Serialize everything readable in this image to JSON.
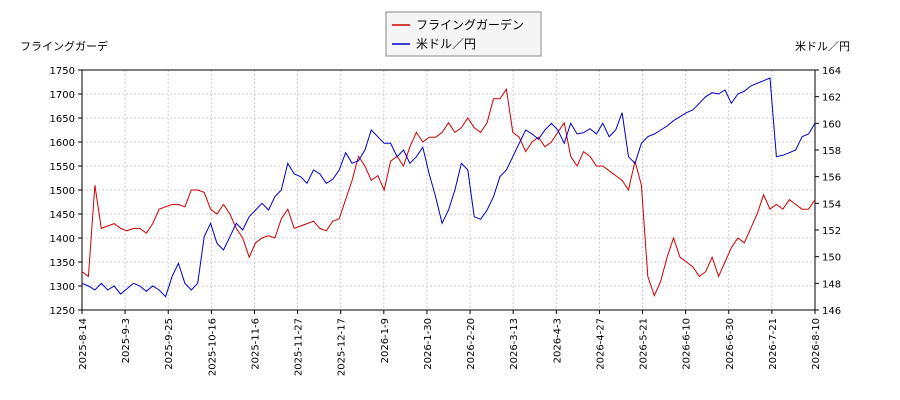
{
  "chart_data": {
    "type": "line",
    "legend": {
      "placement": "top-center"
    },
    "grid": true,
    "left_axis": {
      "title": "フライングガーデ",
      "range": [
        1250,
        1750
      ],
      "ticks": [
        1250,
        1300,
        1350,
        1400,
        1450,
        1500,
        1550,
        1600,
        1650,
        1700,
        1750
      ],
      "color": "#cc0000"
    },
    "right_axis": {
      "title": "米ドル／円",
      "range": [
        146,
        164
      ],
      "ticks": [
        146,
        148,
        150,
        152,
        154,
        156,
        158,
        160,
        162,
        164
      ],
      "color": "#0000cc"
    },
    "x_ticks": [
      "2025-8-14",
      "2025-9-3",
      "2025-9-25",
      "2025-10-16",
      "2025-11-6",
      "2025-11-27",
      "2025-12-17",
      "2026-1-9",
      "2026-1-30",
      "2026-2-20",
      "2026-3-13",
      "2026-4-3",
      "2026-4-27",
      "2026-5-21",
      "2026-6-10",
      "2026-6-30",
      "2026-7-21",
      "2026-8-10"
    ],
    "series": [
      {
        "name": "フライングガーデン",
        "color": "#cc0000",
        "axis": "left",
        "values": [
          1330,
          1320,
          1510,
          1420,
          1425,
          1430,
          1420,
          1415,
          1420,
          1420,
          1410,
          1430,
          1460,
          1465,
          1470,
          1470,
          1465,
          1500,
          1500,
          1495,
          1460,
          1450,
          1470,
          1450,
          1420,
          1400,
          1360,
          1390,
          1400,
          1405,
          1400,
          1440,
          1460,
          1420,
          1425,
          1430,
          1435,
          1420,
          1415,
          1435,
          1440,
          1480,
          1520,
          1570,
          1550,
          1520,
          1530,
          1500,
          1560,
          1570,
          1550,
          1590,
          1620,
          1600,
          1610,
          1610,
          1620,
          1640,
          1620,
          1630,
          1650,
          1630,
          1620,
          1640,
          1690,
          1690,
          1710,
          1620,
          1610,
          1580,
          1600,
          1610,
          1590,
          1600,
          1620,
          1640,
          1570,
          1550,
          1580,
          1570,
          1550,
          1550,
          1540,
          1530,
          1520,
          1500,
          1560,
          1510,
          1320,
          1280,
          1310,
          1360,
          1400,
          1360,
          1350,
          1340,
          1320,
          1330,
          1360,
          1320,
          1350,
          1380,
          1400,
          1390,
          1420,
          1450,
          1490,
          1460,
          1470,
          1460,
          1480,
          1470,
          1460,
          1460,
          1480
        ]
      },
      {
        "name": "米ドル／円",
        "color": "#0000cc",
        "axis": "right",
        "values": [
          148,
          147.8,
          147.5,
          148,
          147.5,
          147.8,
          147.2,
          147.6,
          148,
          147.8,
          147.4,
          147.8,
          147.5,
          147,
          148.5,
          149.5,
          148,
          147.5,
          148,
          151.5,
          152.5,
          151,
          150.5,
          151.5,
          152.5,
          152,
          153,
          153.5,
          154,
          153.5,
          154.5,
          155,
          157,
          156.2,
          156,
          155.5,
          156.5,
          156.2,
          155.5,
          155.8,
          156.5,
          157.8,
          157,
          157.2,
          158,
          159.5,
          159,
          158.5,
          158.5,
          157.5,
          158,
          157,
          157.5,
          158.2,
          156.2,
          154.5,
          152.5,
          153.5,
          155,
          157,
          156.5,
          153,
          152.8,
          153.5,
          154.5,
          156,
          156.5,
          157.5,
          158.5,
          159.5,
          159.2,
          158.8,
          159.5,
          160,
          159.5,
          158.5,
          160,
          159.2,
          159.3,
          159.6,
          159.2,
          160,
          159,
          159.5,
          160.8,
          157.5,
          157,
          158.5,
          159,
          159.2,
          159.5,
          159.8,
          160.2,
          160.5,
          160.8,
          161,
          161.5,
          162,
          162.3,
          162.2,
          162.5,
          161.5,
          162.2,
          162.4,
          162.8,
          163,
          163.2,
          163.4,
          157.5,
          157.6,
          157.8,
          158,
          159,
          159.2,
          160
        ]
      }
    ]
  }
}
